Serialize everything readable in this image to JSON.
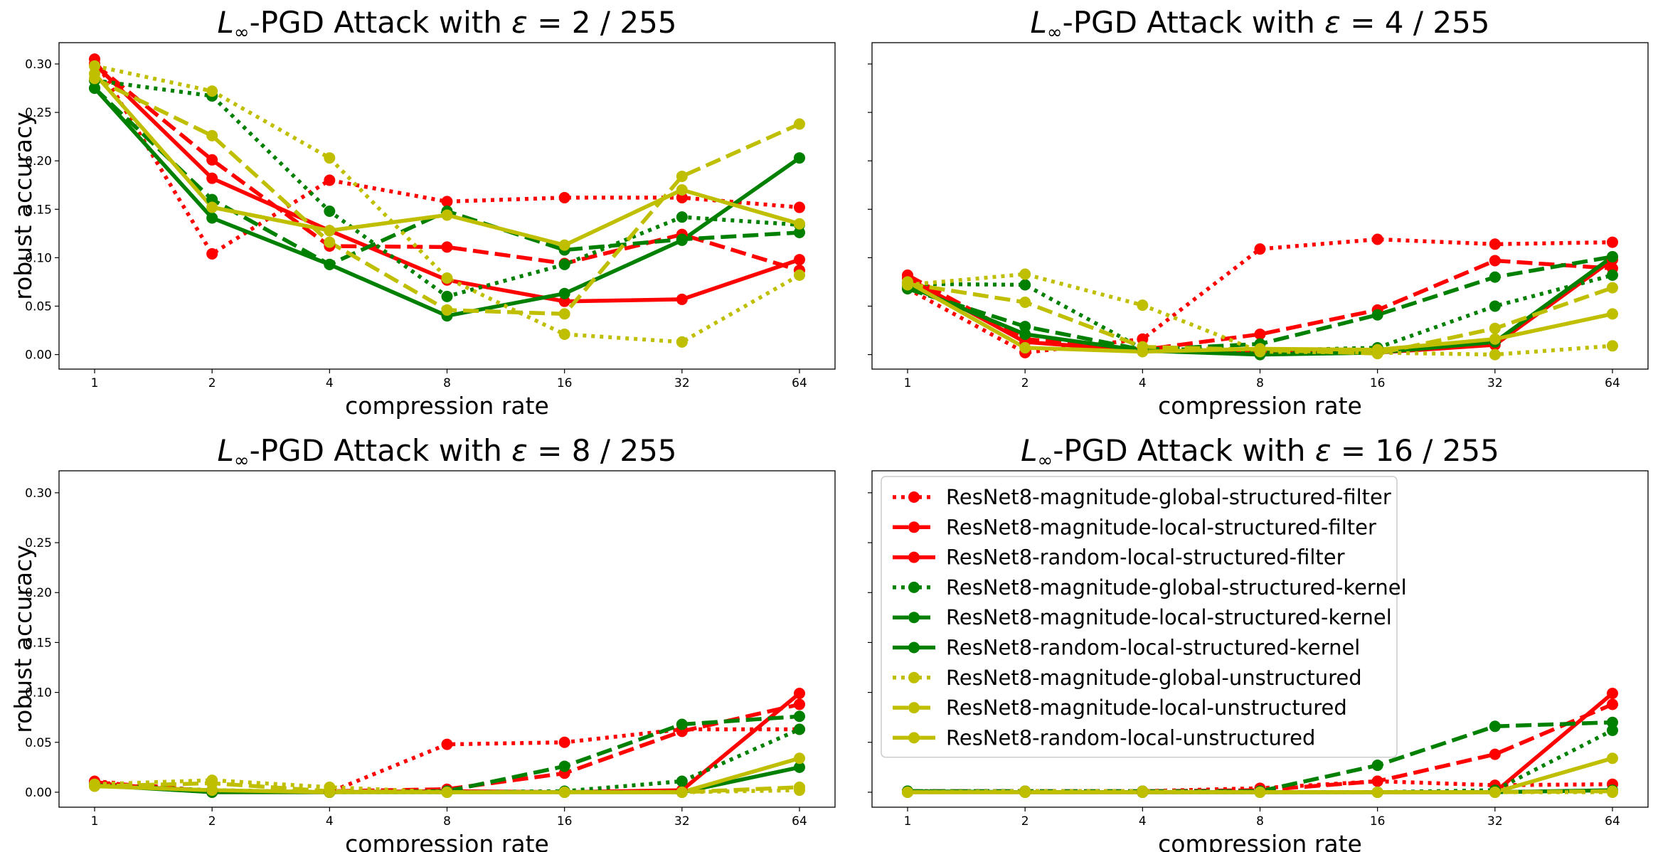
{
  "figure": {
    "xlabel": "compression rate",
    "ylabel": "robust accuracy"
  },
  "chart_data": [
    {
      "type": "line",
      "title_prefix": "L",
      "title_sub": "∞",
      "title_rest": "-PGD Attack with ",
      "title_eps": "ε",
      "title_value": " = 2 / 255",
      "xlabel": "compression rate",
      "ylabel": "robust accuracy",
      "x": [
        1,
        2,
        4,
        8,
        16,
        32,
        64
      ],
      "xscale": "log2",
      "ylim": [
        -0.015,
        0.322
      ],
      "yticks": [
        "0.00",
        "0.05",
        "0.10",
        "0.15",
        "0.20",
        "0.25",
        "0.30"
      ],
      "show_yticks": true,
      "legend": false,
      "series": [
        {
          "name": "ResNet8-magnitude-global-structured-filter",
          "color": "#ff0000",
          "style": "dotted",
          "values": [
            0.305,
            0.104,
            0.18,
            0.158,
            0.162,
            0.162,
            0.152
          ]
        },
        {
          "name": "ResNet8-magnitude-local-structured-filter",
          "color": "#ff0000",
          "style": "dashed",
          "values": [
            0.3,
            0.201,
            0.112,
            0.111,
            0.094,
            0.124,
            0.087
          ]
        },
        {
          "name": "ResNet8-random-local-structured-filter",
          "color": "#ff0000",
          "style": "solid",
          "values": [
            0.3,
            0.182,
            0.128,
            0.077,
            0.055,
            0.057,
            0.098
          ]
        },
        {
          "name": "ResNet8-magnitude-global-structured-kernel",
          "color": "#008000",
          "style": "dotted",
          "values": [
            0.283,
            0.267,
            0.148,
            0.06,
            0.093,
            0.142,
            0.134
          ]
        },
        {
          "name": "ResNet8-magnitude-local-structured-kernel",
          "color": "#008000",
          "style": "dashed",
          "values": [
            0.275,
            0.16,
            0.093,
            0.148,
            0.108,
            0.119,
            0.126
          ]
        },
        {
          "name": "ResNet8-random-local-structured-kernel",
          "color": "#008000",
          "style": "solid",
          "values": [
            0.275,
            0.141,
            0.093,
            0.04,
            0.063,
            0.118,
            0.203
          ]
        },
        {
          "name": "ResNet8-magnitude-global-unstructured",
          "color": "#bfbf00",
          "style": "dotted",
          "values": [
            0.298,
            0.272,
            0.203,
            0.079,
            0.021,
            0.013,
            0.082
          ]
        },
        {
          "name": "ResNet8-magnitude-local-unstructured",
          "color": "#bfbf00",
          "style": "dashed",
          "values": [
            0.285,
            0.226,
            0.116,
            0.046,
            0.042,
            0.184,
            0.238
          ]
        },
        {
          "name": "ResNet8-random-local-unstructured",
          "color": "#bfbf00",
          "style": "solid",
          "values": [
            0.29,
            0.152,
            0.128,
            0.144,
            0.113,
            0.17,
            0.135
          ]
        }
      ]
    },
    {
      "type": "line",
      "title_prefix": "L",
      "title_sub": "∞",
      "title_rest": "-PGD Attack with ",
      "title_eps": "ε",
      "title_value": " = 4 / 255",
      "xlabel": "compression rate",
      "ylabel": "",
      "x": [
        1,
        2,
        4,
        8,
        16,
        32,
        64
      ],
      "xscale": "log2",
      "ylim": [
        -0.015,
        0.322
      ],
      "yticks": [
        "0.00",
        "0.05",
        "0.10",
        "0.15",
        "0.20",
        "0.25",
        "0.30"
      ],
      "show_yticks": false,
      "legend": false,
      "series": [
        {
          "name": "ResNet8-magnitude-global-structured-filter",
          "color": "#ff0000",
          "style": "dotted",
          "values": [
            0.068,
            0.002,
            0.016,
            0.109,
            0.119,
            0.114,
            0.116
          ]
        },
        {
          "name": "ResNet8-magnitude-local-structured-filter",
          "color": "#ff0000",
          "style": "dashed",
          "values": [
            0.082,
            0.016,
            0.005,
            0.021,
            0.046,
            0.097,
            0.089
          ]
        },
        {
          "name": "ResNet8-random-local-structured-filter",
          "color": "#ff0000",
          "style": "solid",
          "values": [
            0.079,
            0.013,
            0.004,
            0.002,
            0.002,
            0.01,
            0.098
          ]
        },
        {
          "name": "ResNet8-magnitude-global-structured-kernel",
          "color": "#008000",
          "style": "dotted",
          "values": [
            0.073,
            0.072,
            0.006,
            0.004,
            0.007,
            0.05,
            0.082
          ]
        },
        {
          "name": "ResNet8-magnitude-local-structured-kernel",
          "color": "#008000",
          "style": "dashed",
          "values": [
            0.068,
            0.029,
            0.005,
            0.011,
            0.041,
            0.08,
            0.101
          ]
        },
        {
          "name": "ResNet8-random-local-structured-kernel",
          "color": "#008000",
          "style": "solid",
          "values": [
            0.071,
            0.021,
            0.004,
            0.0,
            0.002,
            0.013,
            0.101
          ]
        },
        {
          "name": "ResNet8-magnitude-global-unstructured",
          "color": "#bfbf00",
          "style": "dotted",
          "values": [
            0.072,
            0.083,
            0.051,
            0.003,
            0.002,
            0.0,
            0.009
          ]
        },
        {
          "name": "ResNet8-magnitude-local-unstructured",
          "color": "#bfbf00",
          "style": "dashed",
          "values": [
            0.073,
            0.054,
            0.008,
            0.005,
            0.001,
            0.027,
            0.069
          ]
        },
        {
          "name": "ResNet8-random-local-unstructured",
          "color": "#bfbf00",
          "style": "solid",
          "values": [
            0.075,
            0.007,
            0.003,
            0.006,
            0.005,
            0.016,
            0.042
          ]
        }
      ]
    },
    {
      "type": "line",
      "title_prefix": "L",
      "title_sub": "∞",
      "title_rest": "-PGD Attack with ",
      "title_eps": "ε",
      "title_value": " = 8 / 255",
      "xlabel": "compression rate",
      "ylabel": "robust accuracy",
      "x": [
        1,
        2,
        4,
        8,
        16,
        32,
        64
      ],
      "xscale": "log2",
      "ylim": [
        -0.015,
        0.322
      ],
      "yticks": [
        "0.00",
        "0.05",
        "0.10",
        "0.15",
        "0.20",
        "0.25",
        "0.30"
      ],
      "show_yticks": true,
      "legend": false,
      "series": [
        {
          "name": "ResNet8-magnitude-global-structured-filter",
          "color": "#ff0000",
          "style": "dotted",
          "values": [
            0.011,
            0.001,
            0.0,
            0.048,
            0.05,
            0.063,
            0.063
          ]
        },
        {
          "name": "ResNet8-magnitude-local-structured-filter",
          "color": "#ff0000",
          "style": "dashed",
          "values": [
            0.01,
            0.001,
            0.001,
            0.003,
            0.019,
            0.061,
            0.088
          ]
        },
        {
          "name": "ResNet8-random-local-structured-filter",
          "color": "#ff0000",
          "style": "solid",
          "values": [
            0.009,
            0.0,
            0.0,
            0.001,
            0.0,
            0.002,
            0.099
          ]
        },
        {
          "name": "ResNet8-magnitude-global-structured-kernel",
          "color": "#008000",
          "style": "dotted",
          "values": [
            0.007,
            0.002,
            0.0,
            0.0,
            0.001,
            0.011,
            0.063
          ]
        },
        {
          "name": "ResNet8-magnitude-local-structured-kernel",
          "color": "#008000",
          "style": "dashed",
          "values": [
            0.007,
            0.001,
            0.0,
            0.001,
            0.026,
            0.068,
            0.076
          ]
        },
        {
          "name": "ResNet8-random-local-structured-kernel",
          "color": "#008000",
          "style": "solid",
          "values": [
            0.007,
            0.0,
            0.0,
            0.0,
            0.0,
            0.0,
            0.025
          ]
        },
        {
          "name": "ResNet8-magnitude-global-unstructured",
          "color": "#bfbf00",
          "style": "dotted",
          "values": [
            0.008,
            0.012,
            0.005,
            0.0,
            0.0,
            0.0,
            0.002
          ]
        },
        {
          "name": "ResNet8-magnitude-local-unstructured",
          "color": "#bfbf00",
          "style": "dashed",
          "values": [
            0.006,
            0.009,
            0.001,
            0.0,
            0.0,
            0.0,
            0.005
          ]
        },
        {
          "name": "ResNet8-random-local-unstructured",
          "color": "#bfbf00",
          "style": "solid",
          "values": [
            0.006,
            0.002,
            0.0,
            0.0,
            0.0,
            0.0,
            0.034
          ]
        }
      ]
    },
    {
      "type": "line",
      "title_prefix": "L",
      "title_sub": "∞",
      "title_rest": "-PGD Attack with ",
      "title_eps": "ε",
      "title_value": " = 16 / 255",
      "xlabel": "compression rate",
      "ylabel": "",
      "x": [
        1,
        2,
        4,
        8,
        16,
        32,
        64
      ],
      "xscale": "log2",
      "ylim": [
        -0.015,
        0.322
      ],
      "yticks": [
        "0.00",
        "0.05",
        "0.10",
        "0.15",
        "0.20",
        "0.25",
        "0.30"
      ],
      "show_yticks": false,
      "legend": true,
      "legend_loc": "upper-left",
      "series": [
        {
          "name": "ResNet8-magnitude-global-structured-filter",
          "color": "#ff0000",
          "style": "dotted",
          "values": [
            0.001,
            0.001,
            0.001,
            0.004,
            0.011,
            0.007,
            0.008
          ]
        },
        {
          "name": "ResNet8-magnitude-local-structured-filter",
          "color": "#ff0000",
          "style": "dashed",
          "values": [
            0.001,
            0.001,
            0.001,
            0.002,
            0.011,
            0.038,
            0.088
          ]
        },
        {
          "name": "ResNet8-random-local-structured-filter",
          "color": "#ff0000",
          "style": "solid",
          "values": [
            0.0,
            0.0,
            0.0,
            0.0,
            0.0,
            0.0,
            0.099
          ]
        },
        {
          "name": "ResNet8-magnitude-global-structured-kernel",
          "color": "#008000",
          "style": "dotted",
          "values": [
            0.001,
            0.001,
            0.0,
            0.0,
            0.0,
            0.002,
            0.062
          ]
        },
        {
          "name": "ResNet8-magnitude-local-structured-kernel",
          "color": "#008000",
          "style": "dashed",
          "values": [
            0.001,
            0.001,
            0.001,
            0.001,
            0.027,
            0.066,
            0.07
          ]
        },
        {
          "name": "ResNet8-random-local-structured-kernel",
          "color": "#008000",
          "style": "solid",
          "values": [
            0.001,
            0.0,
            0.0,
            0.0,
            0.0,
            0.0,
            0.002
          ]
        },
        {
          "name": "ResNet8-magnitude-global-unstructured",
          "color": "#bfbf00",
          "style": "dotted",
          "values": [
            0.0,
            0.001,
            0.001,
            0.0,
            0.0,
            0.0,
            0.0
          ]
        },
        {
          "name": "ResNet8-magnitude-local-unstructured",
          "color": "#bfbf00",
          "style": "dashed",
          "values": [
            0.0,
            0.0,
            0.0,
            0.0,
            0.0,
            0.0,
            0.001
          ]
        },
        {
          "name": "ResNet8-random-local-unstructured",
          "color": "#bfbf00",
          "style": "solid",
          "values": [
            0.0,
            0.0,
            0.0,
            0.0,
            0.0,
            0.0,
            0.034
          ]
        }
      ]
    }
  ]
}
